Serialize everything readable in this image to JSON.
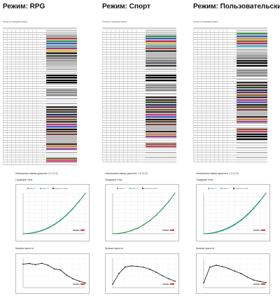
{
  "panels": [
    {
      "title": "Режим: RPG",
      "table_caption": "Точность передачи цвета",
      "measurement_caption": "Измерения гаммы дисплея: 2.2 (2.2)",
      "gamma_label": "Градация тона",
      "contrast_label": "Кривая яркости",
      "rows": [
        {
          "name": "",
          "color": "#e6e6e6"
        },
        {
          "name": "",
          "color": "#d8d8d8"
        },
        {
          "name": "",
          "color": "#a0a0a0"
        },
        {
          "name": "",
          "color": "#cc3333"
        },
        {
          "name": "",
          "color": "#2f9e44"
        },
        {
          "name": "",
          "color": "#3b5bdb"
        },
        {
          "name": "",
          "color": "#3bb3c7"
        },
        {
          "name": "",
          "color": "#c2255c"
        },
        {
          "name": "",
          "color": "#e0c23a"
        },
        {
          "name": "",
          "color": "#111111"
        },
        {
          "name": "",
          "color": "#444444"
        },
        {
          "name": "",
          "color": "#777777"
        },
        {
          "name": "",
          "color": "#999999"
        },
        {
          "name": "",
          "color": "#b6b6b6"
        },
        {
          "name": "",
          "color": "#c8c8c8"
        },
        {
          "name": "",
          "color": "#d9d9d9"
        },
        {
          "name": "",
          "color": "#e8e8e8"
        },
        {
          "name": "",
          "color": "#f3f3f3"
        },
        {
          "name": "",
          "color": "#111111"
        },
        {
          "name": "",
          "color": "#000000"
        },
        {
          "name": "",
          "color": "#000000"
        },
        {
          "name": "",
          "color": "#0b0b0b"
        },
        {
          "name": "",
          "color": "#ffffff"
        },
        {
          "name": "",
          "color": "#ffffff"
        },
        {
          "name": "",
          "color": "#8a8a8a"
        },
        {
          "name": "",
          "color": "#8a8a8a"
        },
        {
          "name": "",
          "color": "#8a8a8a"
        },
        {
          "name": "",
          "color": "#ffffff"
        },
        {
          "name": "",
          "color": "#ffffff"
        },
        {
          "name": "",
          "color": "#ffffff"
        },
        {
          "name": "",
          "color": "#ffffff"
        },
        {
          "name": "",
          "color": "#2b2b2b"
        },
        {
          "name": "",
          "color": "#5a1a1a"
        },
        {
          "name": "",
          "color": "#1b4d2a"
        },
        {
          "name": "",
          "color": "#1b2a5a"
        },
        {
          "name": "",
          "color": "#6a2a4a"
        },
        {
          "name": "",
          "color": "#8b5a2b"
        },
        {
          "name": "",
          "color": "#2a2a2a"
        },
        {
          "name": "",
          "color": "#d6336c"
        },
        {
          "name": "",
          "color": "#3b5bdb"
        },
        {
          "name": "",
          "color": "#111111"
        },
        {
          "name": "",
          "color": "#5a3a1a"
        },
        {
          "name": "",
          "color": "#7f3b3b"
        },
        {
          "name": "",
          "color": "#bdbdbd"
        },
        {
          "name": "",
          "color": "#bdbdbd"
        },
        {
          "name": "",
          "color": "#bdbdbd"
        },
        {
          "name": "",
          "color": "#2a2a2a"
        },
        {
          "name": "",
          "color": "#e67e22"
        },
        {
          "name": "",
          "color": "#8e44ad"
        },
        {
          "name": "",
          "color": "#ffffff"
        },
        {
          "name": "",
          "color": "#ffffff"
        },
        {
          "name": "",
          "color": "#ffffff"
        },
        {
          "name": "",
          "color": "#8b5a2b"
        },
        {
          "name": "",
          "color": "#d6336c"
        },
        {
          "name": "",
          "color": "#ffffff"
        }
      ],
      "gamma_chart": {
        "type": "line",
        "legend": [
          "Гамма 2.2",
          "Гамма 2.4",
          "Измеренная гамма"
        ],
        "series_colors": [
          "#2f9e44",
          "#1fb6c8",
          "#111111"
        ],
        "x": [
          0,
          10,
          20,
          30,
          40,
          50,
          60,
          70,
          80,
          90,
          100
        ],
        "ideal": [
          0,
          0.6,
          3.0,
          7.1,
          13.3,
          21.8,
          32.5,
          45.6,
          61.3,
          79.3,
          100
        ],
        "measured": [
          0,
          1.0,
          3.8,
          8.2,
          14.5,
          22.9,
          33.7,
          46.8,
          62.4,
          80.2,
          100
        ],
        "brand": "Ixbtlabs"
      },
      "contrast_chart": {
        "type": "line",
        "x": [
          0,
          10,
          20,
          30,
          40,
          50,
          60,
          70,
          80,
          90,
          100
        ],
        "y": [
          800,
          820,
          780,
          830,
          760,
          640,
          600,
          420,
          300,
          220,
          160
        ],
        "brand": "Ixbtlabs"
      }
    },
    {
      "title": "Режим: Спорт",
      "table_caption": "Точность передачи цвета",
      "measurement_caption": "Измерения гаммы дисплея: 2.2 (2.2)",
      "gamma_label": "Градация тона",
      "contrast_label": "Кривая яркости",
      "rows": [
        {
          "name": "",
          "color": "#e6e6e6"
        },
        {
          "name": "",
          "color": "#d8d8d8"
        },
        {
          "name": "",
          "color": "#2f9e44"
        },
        {
          "name": "",
          "color": "#3b5bdb"
        },
        {
          "name": "",
          "color": "#c2255c"
        },
        {
          "name": "",
          "color": "#e0c23a"
        },
        {
          "name": "",
          "color": "#3bb3c7"
        },
        {
          "name": "",
          "color": "#cc3333"
        },
        {
          "name": "",
          "color": "#2a2a2a"
        },
        {
          "name": "",
          "color": "#bdbdbd"
        },
        {
          "name": "",
          "color": "#bdbdbd"
        },
        {
          "name": "",
          "color": "#999999"
        },
        {
          "name": "",
          "color": "#777777"
        },
        {
          "name": "",
          "color": "#555555"
        },
        {
          "name": "",
          "color": "#333333"
        },
        {
          "name": "",
          "color": "#e8e8e8"
        },
        {
          "name": "",
          "color": "#f3f3f3"
        },
        {
          "name": "",
          "color": "#ffffff"
        },
        {
          "name": "",
          "color": "#111111"
        },
        {
          "name": "",
          "color": "#000000"
        },
        {
          "name": "",
          "color": "#0b0b0b"
        },
        {
          "name": "",
          "color": "#ffffff"
        },
        {
          "name": "",
          "color": "#8a8a8a"
        },
        {
          "name": "",
          "color": "#8a8a8a"
        },
        {
          "name": "",
          "color": "#8a8a8a"
        },
        {
          "name": "",
          "color": "#ffffff"
        },
        {
          "name": "",
          "color": "#ffffff"
        },
        {
          "name": "",
          "color": "#2b2b2b"
        },
        {
          "name": "",
          "color": "#5a1a1a"
        },
        {
          "name": "",
          "color": "#1b4d2a"
        },
        {
          "name": "",
          "color": "#1b2a5a"
        },
        {
          "name": "",
          "color": "#6a2a4a"
        },
        {
          "name": "",
          "color": "#8b5a2b"
        },
        {
          "name": "",
          "color": "#2a2a2a"
        },
        {
          "name": "",
          "color": "#d6336c"
        },
        {
          "name": "",
          "color": "#3b5bdb"
        },
        {
          "name": "",
          "color": "#111111"
        },
        {
          "name": "",
          "color": "#5a3a1a"
        },
        {
          "name": "",
          "color": "#7f3b3b"
        },
        {
          "name": "",
          "color": "#bdbdbd"
        },
        {
          "name": "",
          "color": "#bdbdbd"
        },
        {
          "name": "",
          "color": "#2a2a2a"
        },
        {
          "name": "",
          "color": "#e67e22"
        },
        {
          "name": "",
          "color": "#8e44ad"
        },
        {
          "name": "",
          "color": "#ffffff"
        },
        {
          "name": "",
          "color": "#ffffff"
        },
        {
          "name": "",
          "color": "#8b5a2b"
        },
        {
          "name": "",
          "color": "#d6336c"
        },
        {
          "name": "",
          "color": "#ffffff"
        },
        {
          "name": "",
          "color": "#ffffff"
        },
        {
          "name": "",
          "color": "#ffffff"
        },
        {
          "name": "",
          "color": "#ffffff"
        },
        {
          "name": "",
          "color": "#ffffff"
        },
        {
          "name": "",
          "color": "#ffffff"
        }
      ],
      "gamma_chart": {
        "type": "line",
        "legend": [
          "Гамма 2.2",
          "Гамма 2.4",
          "Измеренная гамма"
        ],
        "series_colors": [
          "#2f9e44",
          "#1fb6c8",
          "#111111"
        ],
        "x": [
          0,
          10,
          20,
          30,
          40,
          50,
          60,
          70,
          80,
          90,
          100
        ],
        "ideal": [
          0,
          0.6,
          3.0,
          7.1,
          13.3,
          21.8,
          32.5,
          45.6,
          61.3,
          79.3,
          100
        ],
        "measured": [
          0,
          0.8,
          3.4,
          7.8,
          14.0,
          22.3,
          33.1,
          46.1,
          61.9,
          79.8,
          100
        ],
        "brand": "Ixbtlabs"
      },
      "contrast_chart": {
        "type": "line",
        "x": [
          0,
          10,
          20,
          30,
          40,
          50,
          60,
          70,
          80,
          90,
          100
        ],
        "y": [
          120,
          480,
          700,
          740,
          720,
          690,
          620,
          520,
          400,
          300,
          220
        ],
        "brand": "Ixbtlabs"
      }
    },
    {
      "title": "Режим: Пользовательский",
      "table_caption": "Точность передачи цвета",
      "measurement_caption": "Измерения гаммы дисплея: 2.2 (2.2)",
      "gamma_label": "Градация тона",
      "contrast_label": "Кривая яркости",
      "rows": [
        {
          "name": "",
          "color": "#e6e6e6"
        },
        {
          "name": "",
          "color": "#2f9e44"
        },
        {
          "name": "",
          "color": "#3b5bdb"
        },
        {
          "name": "",
          "color": "#d4a017"
        },
        {
          "name": "",
          "color": "#8b5a2b"
        },
        {
          "name": "",
          "color": "#c2255c"
        },
        {
          "name": "",
          "color": "#3bb3c7"
        },
        {
          "name": "",
          "color": "#e6e6e6"
        },
        {
          "name": "",
          "color": "#d8d8d8"
        },
        {
          "name": "",
          "color": "#bdbdbd"
        },
        {
          "name": "",
          "color": "#999999"
        },
        {
          "name": "",
          "color": "#777777"
        },
        {
          "name": "",
          "color": "#111111"
        },
        {
          "name": "",
          "color": "#000000"
        },
        {
          "name": "",
          "color": "#0b0b0b"
        },
        {
          "name": "",
          "color": "#ffffff"
        },
        {
          "name": "",
          "color": "#8a8a8a"
        },
        {
          "name": "",
          "color": "#8a8a8a"
        },
        {
          "name": "",
          "color": "#8a8a8a"
        },
        {
          "name": "",
          "color": "#ffffff"
        },
        {
          "name": "",
          "color": "#ffffff"
        },
        {
          "name": "",
          "color": "#2b2b2b"
        },
        {
          "name": "",
          "color": "#5a1a1a"
        },
        {
          "name": "",
          "color": "#1b4d2a"
        },
        {
          "name": "",
          "color": "#1b2a5a"
        },
        {
          "name": "",
          "color": "#6a2a4a"
        },
        {
          "name": "",
          "color": "#8b5a2b"
        },
        {
          "name": "",
          "color": "#2a2a2a"
        },
        {
          "name": "",
          "color": "#d6336c"
        },
        {
          "name": "",
          "color": "#3b5bdb"
        },
        {
          "name": "",
          "color": "#111111"
        },
        {
          "name": "",
          "color": "#5a3a1a"
        },
        {
          "name": "",
          "color": "#7f3b3b"
        },
        {
          "name": "",
          "color": "#bdbdbd"
        },
        {
          "name": "",
          "color": "#bdbdbd"
        },
        {
          "name": "",
          "color": "#2a2a2a"
        },
        {
          "name": "",
          "color": "#e67e22"
        },
        {
          "name": "",
          "color": "#8e44ad"
        },
        {
          "name": "",
          "color": "#ffffff"
        },
        {
          "name": "",
          "color": "#ffffff"
        },
        {
          "name": "",
          "color": "#8b5a2b"
        },
        {
          "name": "",
          "color": "#d6336c"
        },
        {
          "name": "",
          "color": "#111111"
        },
        {
          "name": "",
          "color": "#000000"
        },
        {
          "name": "",
          "color": "#0b0b0b"
        },
        {
          "name": "",
          "color": "#ffffff"
        },
        {
          "name": "",
          "color": "#ffffff"
        },
        {
          "name": "",
          "color": "#ffffff"
        },
        {
          "name": "",
          "color": "#ffffff"
        },
        {
          "name": "",
          "color": "#ffffff"
        },
        {
          "name": "",
          "color": "#ffffff"
        },
        {
          "name": "",
          "color": "#ffffff"
        },
        {
          "name": "",
          "color": "#ffffff"
        },
        {
          "name": "",
          "color": "#ffffff"
        }
      ],
      "gamma_chart": {
        "type": "line",
        "legend": [
          "Гамма 2.2",
          "Гамма 2.4",
          "Измеренная гамма"
        ],
        "series_colors": [
          "#2f9e44",
          "#1fb6c8",
          "#111111"
        ],
        "x": [
          0,
          10,
          20,
          30,
          40,
          50,
          60,
          70,
          80,
          90,
          100
        ],
        "ideal": [
          0,
          0.6,
          3.0,
          7.1,
          13.3,
          21.8,
          32.5,
          45.6,
          61.3,
          79.3,
          100
        ],
        "measured": [
          0,
          1.1,
          4.2,
          8.8,
          15.0,
          23.3,
          34.0,
          47.0,
          62.7,
          80.5,
          100
        ],
        "brand": "Ixbtlabs"
      },
      "contrast_chart": {
        "type": "line",
        "x": [
          0,
          10,
          20,
          30,
          40,
          50,
          60,
          70,
          80,
          90,
          100
        ],
        "y": [
          160,
          700,
          760,
          720,
          650,
          560,
          480,
          360,
          260,
          210,
          170
        ],
        "brand": "Ixbtlabs"
      }
    }
  ]
}
